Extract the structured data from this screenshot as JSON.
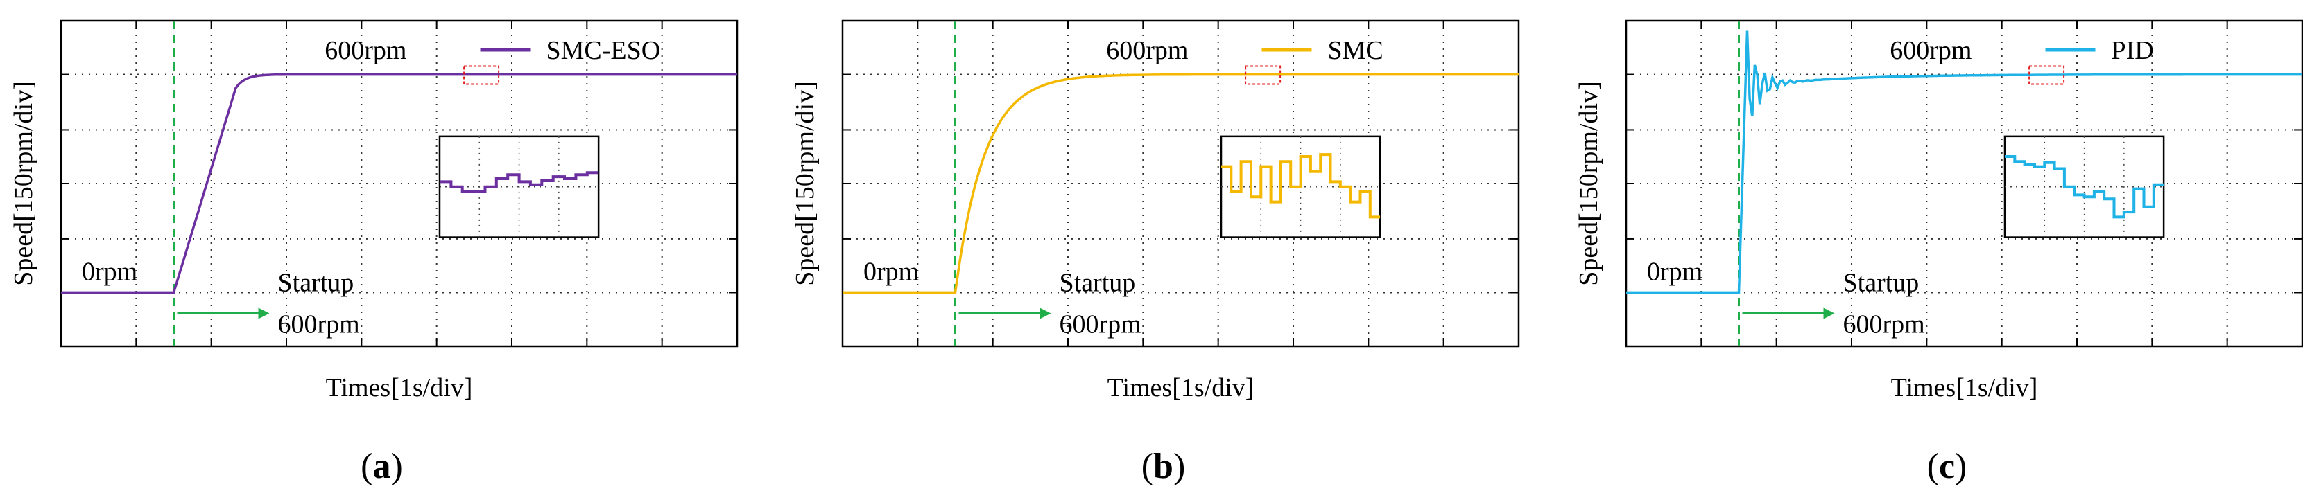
{
  "figure": {
    "panels": [
      {
        "caption_letter": "a",
        "chart_data": {
          "type": "line",
          "title": "",
          "series": [
            {
              "name": "SMC-ESO",
              "color": "#6b2fa0"
            }
          ],
          "xlabel": "Times[1s/div]",
          "ylabel": "Speed[150rpm/div]",
          "x_divisions": 9,
          "y_divisions": 6,
          "grid": true,
          "start_time_div": 1.5,
          "initial_speed_rpm": 0,
          "target_speed_rpm": 600,
          "rise_time_div": 1.1,
          "overshoot_rpm": 0,
          "annotations": {
            "target_label": "600rpm",
            "initial_label": "0rpm",
            "startup_label": "Startup",
            "startup_target_label": "600rpm"
          },
          "inset": {
            "description_values": [
              0.55,
              0.5,
              0.45,
              0.45,
              0.5,
              0.58,
              0.62,
              0.55,
              0.52,
              0.56,
              0.6,
              0.58,
              0.62,
              0.64
            ],
            "zoom_source": "red dashed box on steady-state segment"
          }
        }
      },
      {
        "caption_letter": "b",
        "chart_data": {
          "type": "line",
          "title": "",
          "series": [
            {
              "name": "SMC",
              "color": "#f5b800"
            }
          ],
          "xlabel": "Times[1s/div]",
          "ylabel": "Speed[150rpm/div]",
          "x_divisions": 9,
          "y_divisions": 6,
          "grid": true,
          "start_time_div": 1.5,
          "initial_speed_rpm": 0,
          "target_speed_rpm": 600,
          "rise_time_div": 1.5,
          "overshoot_rpm": 0,
          "annotations": {
            "target_label": "600rpm",
            "initial_label": "0rpm",
            "startup_label": "Startup",
            "startup_target_label": "600rpm"
          },
          "inset": {
            "description_values": [
              0.7,
              0.45,
              0.75,
              0.4,
              0.7,
              0.35,
              0.75,
              0.5,
              0.8,
              0.65,
              0.82,
              0.55,
              0.5,
              0.35,
              0.45,
              0.2
            ],
            "zoom_source": "red dashed box on steady-state segment"
          }
        }
      },
      {
        "caption_letter": "c",
        "chart_data": {
          "type": "line",
          "title": "",
          "series": [
            {
              "name": "PID",
              "color": "#1fb2e6"
            }
          ],
          "xlabel": "Times[1s/div]",
          "ylabel": "Speed[150rpm/div]",
          "x_divisions": 9,
          "y_divisions": 6,
          "grid": true,
          "start_time_div": 1.5,
          "initial_speed_rpm": 0,
          "target_speed_rpm": 600,
          "rise_time_div": 0.1,
          "overshoot_rpm": 120,
          "annotations": {
            "target_label": "600rpm",
            "initial_label": "0rpm",
            "startup_label": "Startup",
            "startup_target_label": "600rpm"
          },
          "inset": {
            "description_values": [
              0.8,
              0.75,
              0.72,
              0.7,
              0.74,
              0.68,
              0.5,
              0.42,
              0.4,
              0.45,
              0.38,
              0.2,
              0.25,
              0.48,
              0.3,
              0.52
            ],
            "zoom_source": "red dashed box on steady-state segment"
          }
        }
      }
    ],
    "colors": {
      "start_line": "#1fae4a",
      "arrow": "#1fae4a",
      "zoom_box": "#e02020",
      "grid": "#333333"
    }
  }
}
